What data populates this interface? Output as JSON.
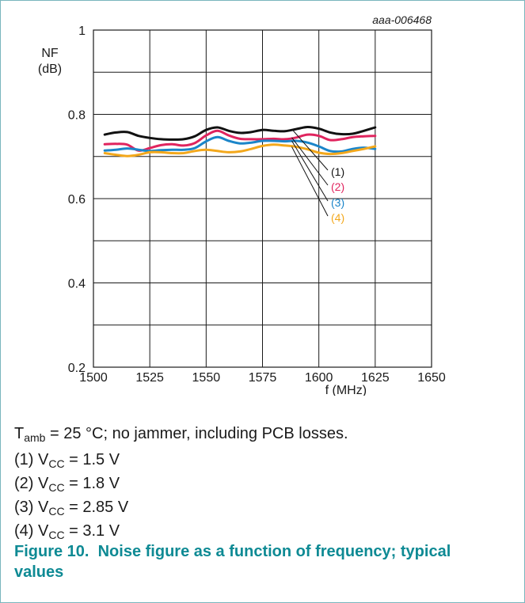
{
  "colors": {
    "frame": "#7ab6bd",
    "caption": "#0e8a94",
    "grid": "#1a1a1a",
    "series": [
      "#111111",
      "#e0245e",
      "#1b85c9",
      "#f3a81c"
    ]
  },
  "chart_data": {
    "type": "line",
    "figure_id": "aaa-006468",
    "ylabel_line1": "NF",
    "ylabel_line2": "(dB)",
    "xlabel": "f (MHz)",
    "xlim": [
      1500,
      1650
    ],
    "ylim": [
      0.2,
      1.0
    ],
    "x_ticks": [
      1500,
      1525,
      1550,
      1575,
      1600,
      1625,
      1650
    ],
    "x_tick_labels": [
      "1500",
      "1525",
      "1550",
      "1575",
      "1600",
      "1625",
      "1650"
    ],
    "y_ticks": [
      0.2,
      0.4,
      0.6,
      0.8,
      1.0
    ],
    "y_tick_labels": [
      "0.2",
      "0.4",
      "0.6",
      "0.8",
      "1"
    ],
    "y_minor_grid": [
      0.3,
      0.5,
      0.7,
      0.9
    ],
    "grid": true,
    "series": [
      {
        "name": "(1)",
        "x": [
          1505,
          1510,
          1515,
          1520,
          1525,
          1530,
          1535,
          1540,
          1545,
          1550,
          1555,
          1560,
          1565,
          1570,
          1575,
          1580,
          1585,
          1590,
          1595,
          1600,
          1605,
          1610,
          1615,
          1620,
          1625
        ],
        "y": [
          0.752,
          0.757,
          0.758,
          0.749,
          0.744,
          0.741,
          0.74,
          0.741,
          0.748,
          0.763,
          0.769,
          0.761,
          0.756,
          0.758,
          0.763,
          0.761,
          0.76,
          0.765,
          0.77,
          0.766,
          0.757,
          0.753,
          0.754,
          0.761,
          0.769
        ]
      },
      {
        "name": "(2)",
        "x": [
          1505,
          1510,
          1515,
          1520,
          1525,
          1530,
          1535,
          1540,
          1545,
          1550,
          1555,
          1560,
          1565,
          1570,
          1575,
          1580,
          1585,
          1590,
          1595,
          1600,
          1605,
          1610,
          1615,
          1620,
          1625
        ],
        "y": [
          0.729,
          0.73,
          0.728,
          0.714,
          0.72,
          0.727,
          0.729,
          0.726,
          0.732,
          0.75,
          0.761,
          0.75,
          0.742,
          0.741,
          0.741,
          0.742,
          0.741,
          0.745,
          0.752,
          0.749,
          0.739,
          0.741,
          0.746,
          0.748,
          0.749
        ]
      },
      {
        "name": "(3)",
        "x": [
          1505,
          1510,
          1515,
          1520,
          1525,
          1530,
          1535,
          1540,
          1545,
          1550,
          1555,
          1560,
          1565,
          1570,
          1575,
          1580,
          1585,
          1590,
          1595,
          1600,
          1605,
          1610,
          1615,
          1620,
          1625
        ],
        "y": [
          0.714,
          0.716,
          0.719,
          0.716,
          0.713,
          0.715,
          0.716,
          0.716,
          0.72,
          0.736,
          0.746,
          0.737,
          0.731,
          0.733,
          0.737,
          0.737,
          0.736,
          0.737,
          0.733,
          0.724,
          0.713,
          0.712,
          0.718,
          0.721,
          0.718
        ]
      },
      {
        "name": "(4)",
        "x": [
          1505,
          1510,
          1515,
          1520,
          1525,
          1530,
          1535,
          1540,
          1545,
          1550,
          1555,
          1560,
          1565,
          1570,
          1575,
          1580,
          1585,
          1590,
          1595,
          1600,
          1605,
          1610,
          1615,
          1620,
          1625
        ],
        "y": [
          0.708,
          0.704,
          0.701,
          0.704,
          0.71,
          0.71,
          0.708,
          0.708,
          0.713,
          0.716,
          0.713,
          0.71,
          0.712,
          0.718,
          0.725,
          0.728,
          0.726,
          0.723,
          0.717,
          0.709,
          0.706,
          0.708,
          0.713,
          0.718,
          0.724
        ]
      }
    ]
  },
  "notes": {
    "condition": {
      "t": "T",
      "sub": "amb",
      "rest": " = 25 °C; no jammer, including PCB losses."
    },
    "items": [
      {
        "prefix": "(1) V",
        "sub": "CC",
        "rest": " = 1.5 V"
      },
      {
        "prefix": "(2) V",
        "sub": "CC",
        "rest": " = 1.8 V"
      },
      {
        "prefix": "(3) V",
        "sub": "CC",
        "rest": " = 2.85 V"
      },
      {
        "prefix": "(4) V",
        "sub": "CC",
        "rest": " = 3.1 V"
      }
    ]
  },
  "caption": {
    "number": "Figure 10.",
    "text": "Noise figure as a function of frequency; typical values"
  }
}
